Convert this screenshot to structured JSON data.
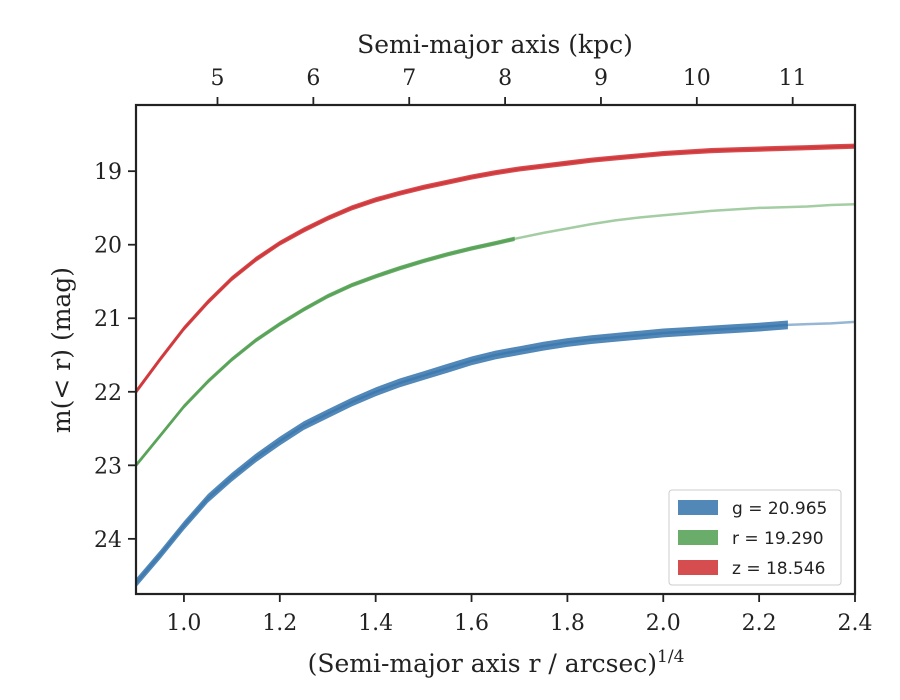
{
  "chart_data": {
    "type": "line",
    "title": "",
    "xlabel": "(Semi-major axis r / arcsec)",
    "xlabel_superscript": "1/4",
    "ylabel": "m(< r) (mag)",
    "top_xlabel": "Semi-major axis (kpc)",
    "xlim": [
      0.9,
      2.4
    ],
    "ylim": [
      24.75,
      18.1
    ],
    "y_inverted": true,
    "grid": false,
    "legend_position": "lower-right",
    "x_ticks": [
      "1.0",
      "1.2",
      "1.4",
      "1.6",
      "1.8",
      "2.0",
      "2.2",
      "2.4"
    ],
    "x_tick_values": [
      1.0,
      1.2,
      1.4,
      1.6,
      1.8,
      2.0,
      2.2,
      2.4
    ],
    "y_ticks": [
      "19",
      "20",
      "21",
      "22",
      "23",
      "24"
    ],
    "y_tick_values": [
      19,
      20,
      21,
      22,
      23,
      24
    ],
    "top_ticks": [
      "5",
      "6",
      "7",
      "8",
      "9",
      "10",
      "11"
    ],
    "top_tick_positions_x": [
      1.07,
      1.27,
      1.47,
      1.67,
      1.87,
      2.07,
      2.27
    ],
    "series": [
      {
        "name": "g = 20.965",
        "legend_label": "g = 20.965",
        "color": "#3f7bb0",
        "x": [
          0.9,
          0.95,
          1.0,
          1.05,
          1.1,
          1.15,
          1.2,
          1.25,
          1.3,
          1.35,
          1.4,
          1.45,
          1.5,
          1.55,
          1.6,
          1.65,
          1.7,
          1.75,
          1.8,
          1.85,
          1.9,
          1.95,
          2.0,
          2.05,
          2.1,
          2.15,
          2.2,
          2.26
        ],
        "y": [
          24.6,
          24.22,
          23.82,
          23.45,
          23.16,
          22.9,
          22.67,
          22.46,
          22.3,
          22.14,
          22.0,
          21.88,
          21.78,
          21.68,
          21.58,
          21.5,
          21.44,
          21.38,
          21.33,
          21.29,
          21.26,
          21.23,
          21.2,
          21.18,
          21.16,
          21.14,
          21.12,
          21.09
        ],
        "band_width": 0.06,
        "extension_x": [
          2.26,
          2.3,
          2.35,
          2.4
        ],
        "extension_y": [
          21.09,
          21.08,
          21.07,
          21.05
        ]
      },
      {
        "name": "r = 19.290",
        "legend_label": "r = 19.290",
        "color": "#5aa45a",
        "x": [
          0.9,
          0.95,
          1.0,
          1.05,
          1.1,
          1.15,
          1.2,
          1.25,
          1.3,
          1.35,
          1.4,
          1.45,
          1.5,
          1.55,
          1.6,
          1.65,
          1.69
        ],
        "y": [
          23.0,
          22.6,
          22.2,
          21.86,
          21.56,
          21.3,
          21.08,
          20.88,
          20.7,
          20.55,
          20.43,
          20.32,
          20.22,
          20.13,
          20.05,
          19.98,
          19.92
        ],
        "band_width": 0.03,
        "extension_x": [
          1.69,
          1.75,
          1.8,
          1.85,
          1.9,
          1.95,
          2.0,
          2.05,
          2.1,
          2.15,
          2.2,
          2.25,
          2.3,
          2.35,
          2.4
        ],
        "extension_y": [
          19.92,
          19.84,
          19.78,
          19.72,
          19.67,
          19.63,
          19.6,
          19.57,
          19.54,
          19.52,
          19.5,
          19.49,
          19.48,
          19.46,
          19.45
        ]
      },
      {
        "name": "z = 18.546",
        "legend_label": "z = 18.546",
        "color": "#d13a3d",
        "x": [
          0.9,
          0.95,
          1.0,
          1.05,
          1.1,
          1.15,
          1.2,
          1.25,
          1.3,
          1.35,
          1.4,
          1.45,
          1.5,
          1.55,
          1.6,
          1.65,
          1.7,
          1.75,
          1.8,
          1.85,
          1.9,
          1.95,
          2.0,
          2.05,
          2.1,
          2.15,
          2.2,
          2.25,
          2.3,
          2.35,
          2.4
        ],
        "y": [
          22.0,
          21.56,
          21.14,
          20.78,
          20.46,
          20.2,
          19.98,
          19.8,
          19.64,
          19.5,
          19.39,
          19.3,
          19.22,
          19.15,
          19.08,
          19.02,
          18.97,
          18.93,
          18.89,
          18.85,
          18.82,
          18.79,
          18.76,
          18.74,
          18.72,
          18.71,
          18.7,
          18.69,
          18.68,
          18.67,
          18.66
        ],
        "band_width": 0.035,
        "extension_x": [],
        "extension_y": []
      }
    ]
  }
}
